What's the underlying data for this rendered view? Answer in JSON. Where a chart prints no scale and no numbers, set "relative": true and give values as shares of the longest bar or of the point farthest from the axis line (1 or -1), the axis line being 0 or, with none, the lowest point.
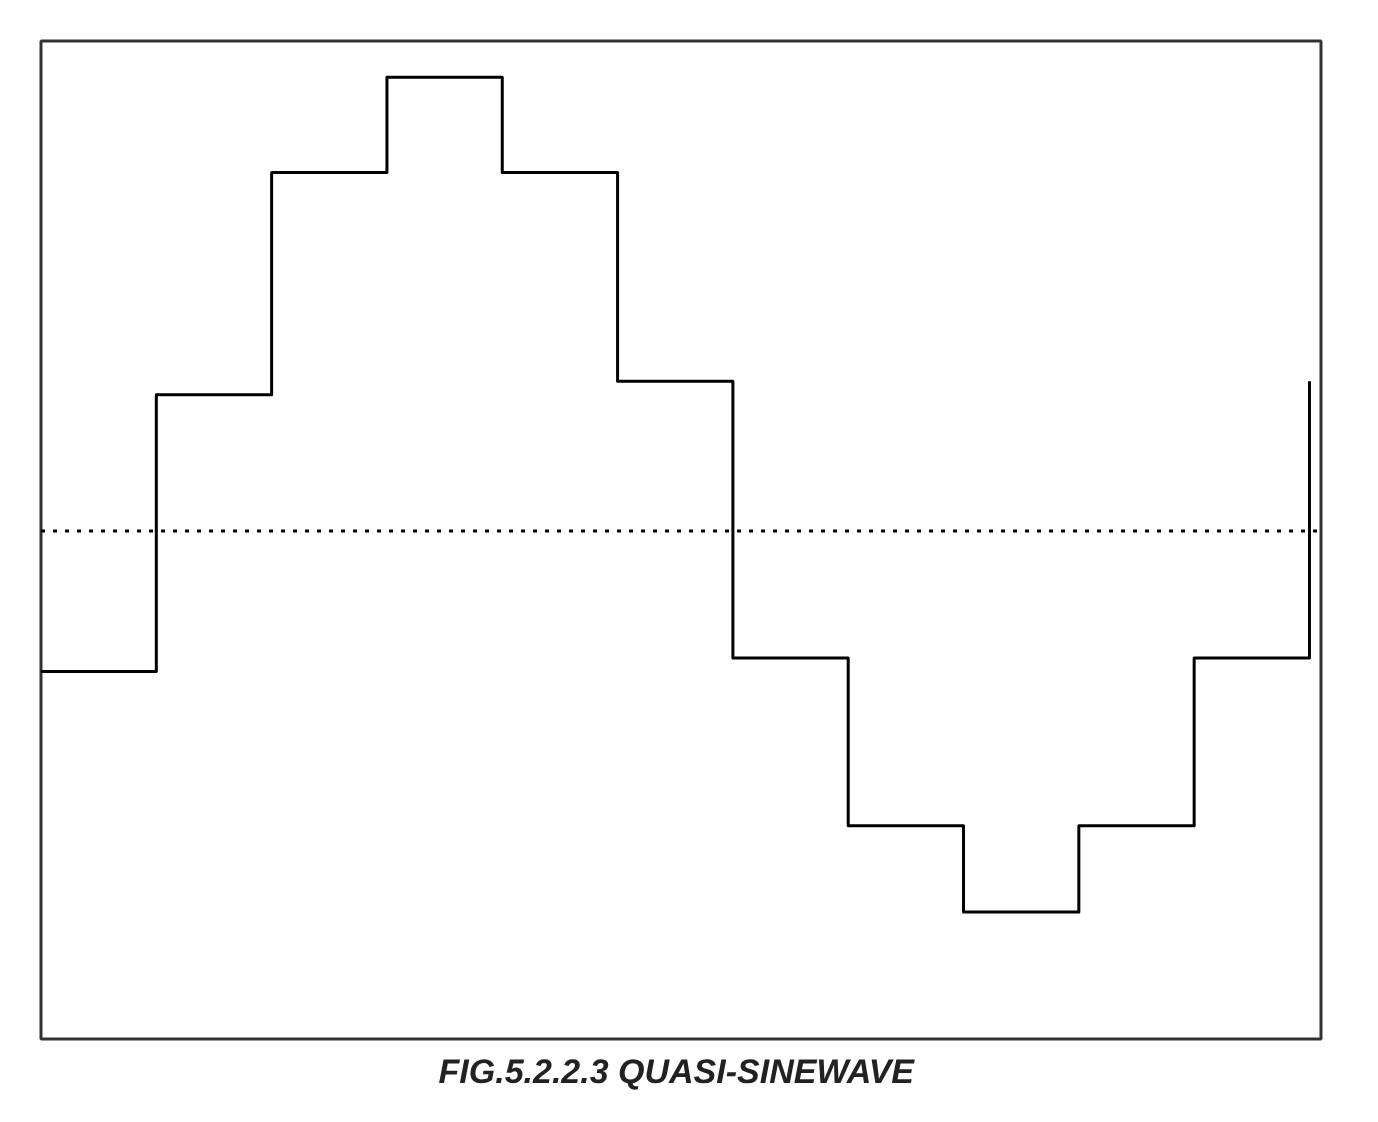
{
  "chart_data": {
    "type": "step",
    "title": "FIG.5.2.2.3  QUASI-SINEWAVE",
    "relative": true,
    "categories": [
      null,
      null,
      null,
      null,
      null,
      null,
      null,
      null,
      null,
      null,
      null,
      null
    ],
    "values": [
      -0.31,
      0.3,
      0.79,
      1,
      0.79,
      0.33,
      -0.28,
      -0.65,
      -0.84,
      -0.65,
      -0.28,
      0.33
    ],
    "color": "#000000",
    "ref_lines": [
      {
        "axis": "y",
        "value": 0,
        "line_style": "dotted",
        "color": "#000000"
      }
    ]
  }
}
